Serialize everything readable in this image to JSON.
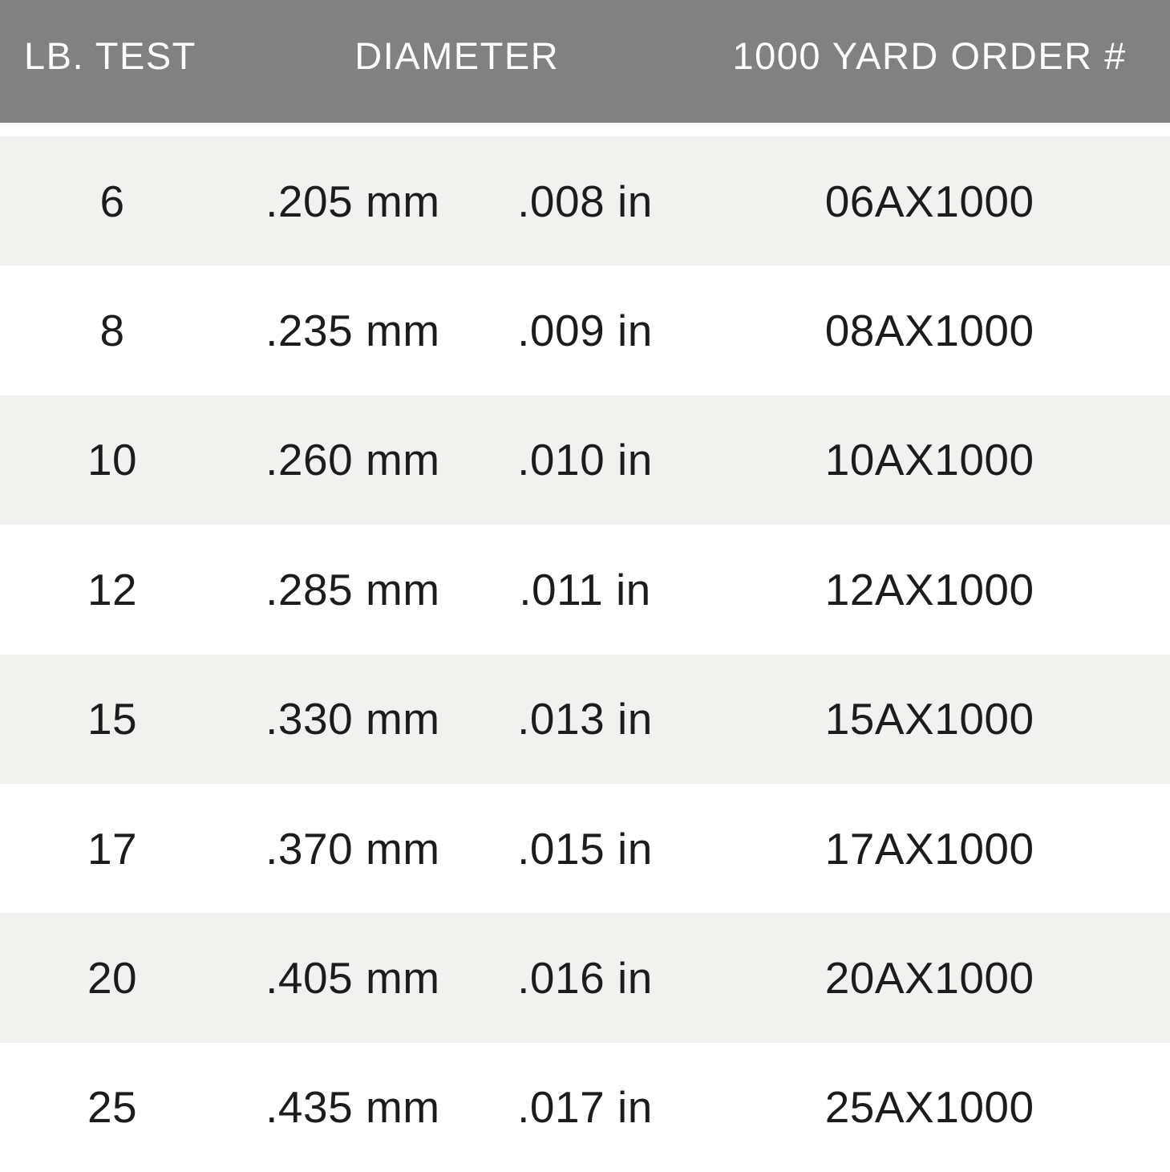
{
  "colors": {
    "header_bg": "#818181",
    "header_text": "#ffffff",
    "row_alt_bg": "#f1f1f0",
    "row_bg": "#ffffff",
    "cell_text": "#1c1c1c"
  },
  "table": {
    "headers": {
      "lb": "LB. TEST",
      "diameter": "DIAMETER",
      "order": "1000 YARD ORDER #"
    },
    "rows": [
      {
        "lb": "6",
        "mm": ".205 mm",
        "inch": ".008 in",
        "order": "06AX1000"
      },
      {
        "lb": "8",
        "mm": ".235 mm",
        "inch": ".009 in",
        "order": "08AX1000"
      },
      {
        "lb": "10",
        "mm": ".260 mm",
        "inch": ".010 in",
        "order": "10AX1000"
      },
      {
        "lb": "12",
        "mm": ".285 mm",
        "inch": ".011 in",
        "order": "12AX1000"
      },
      {
        "lb": "15",
        "mm": ".330 mm",
        "inch": ".013 in",
        "order": "15AX1000"
      },
      {
        "lb": "17",
        "mm": ".370 mm",
        "inch": ".015 in",
        "order": "17AX1000"
      },
      {
        "lb": "20",
        "mm": ".405 mm",
        "inch": ".016 in",
        "order": "20AX1000"
      },
      {
        "lb": "25",
        "mm": ".435 mm",
        "inch": ".017 in",
        "order": "25AX1000"
      }
    ]
  },
  "chart_data": {
    "type": "table",
    "title": "",
    "columns": [
      "LB. TEST",
      "DIAMETER (mm)",
      "DIAMETER (in)",
      "1000 YARD ORDER #"
    ],
    "rows": [
      [
        "6",
        ".205 mm",
        ".008 in",
        "06AX1000"
      ],
      [
        "8",
        ".235 mm",
        ".009 in",
        "08AX1000"
      ],
      [
        "10",
        ".260 mm",
        ".010 in",
        "10AX1000"
      ],
      [
        "12",
        ".285 mm",
        ".011 in",
        "12AX1000"
      ],
      [
        "15",
        ".330 mm",
        ".013 in",
        "15AX1000"
      ],
      [
        "17",
        ".370 mm",
        ".015 in",
        "17AX1000"
      ],
      [
        "20",
        ".405 mm",
        ".016 in",
        "20AX1000"
      ],
      [
        "25",
        ".435 mm",
        ".017 in",
        "25AX1000"
      ]
    ],
    "layout_hints": {
      "header_background": "#818181",
      "striped_rows": true,
      "stripe_color": "#f1f1f0",
      "grid": false
    }
  }
}
